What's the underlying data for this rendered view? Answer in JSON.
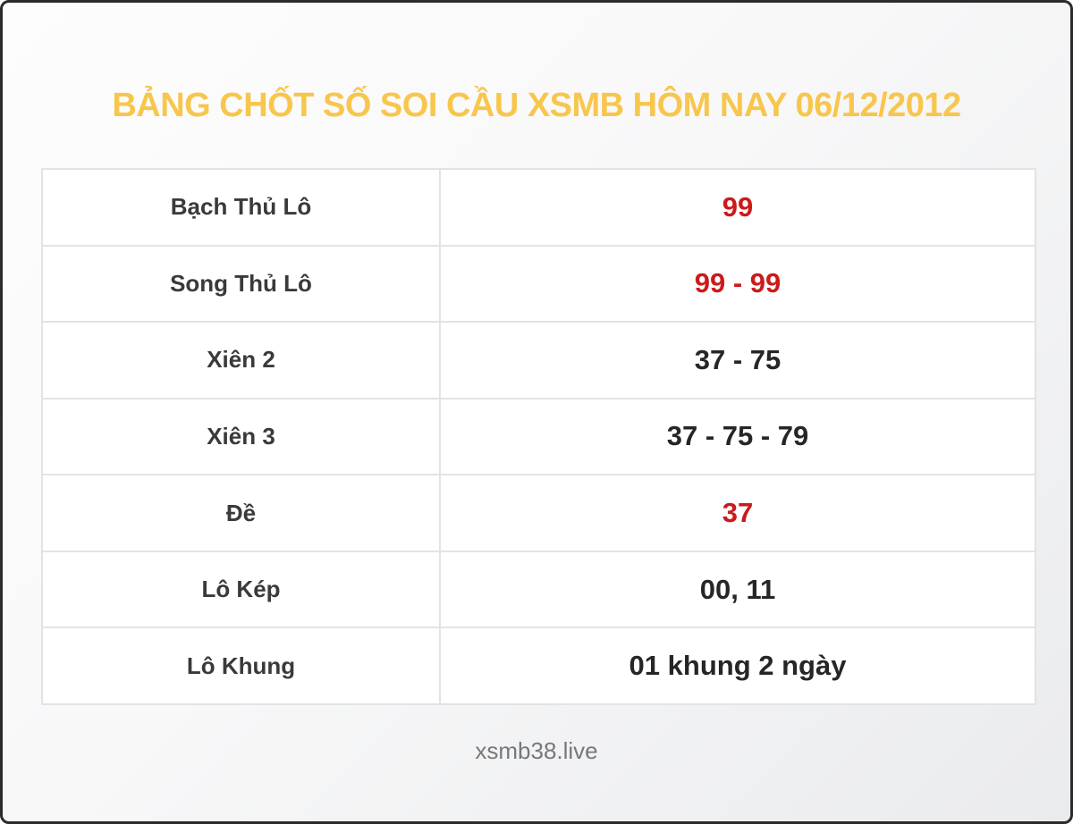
{
  "page": {
    "title": "BẢNG CHỐT SỐ SOI CẦU XSMB HÔM NAY 06/12/2012",
    "footer": "xsmb38.live"
  },
  "colors": {
    "title_gold": "#f8c64d",
    "value_red": "#cc1a1a",
    "value_black": "#262626",
    "label_dark": "#3a3a3a",
    "cell_border": "#e3e3e5",
    "frame_border": "#2b2b2b",
    "footer_gray": "#76787a"
  },
  "table": {
    "rows": [
      {
        "label": "Bạch Thủ Lô",
        "value": "99",
        "highlight": true
      },
      {
        "label": "Song Thủ Lô",
        "value": "99 - 99",
        "highlight": true
      },
      {
        "label": "Xiên 2",
        "value": "37 - 75",
        "highlight": false
      },
      {
        "label": "Xiên 3",
        "value": "37 - 75 - 79",
        "highlight": false
      },
      {
        "label": "Đề",
        "value": "37",
        "highlight": true
      },
      {
        "label": "Lô Kép",
        "value": "00, 11",
        "highlight": false
      },
      {
        "label": "Lô Khung",
        "value": "01 khung 2 ngày",
        "highlight": false
      }
    ]
  }
}
